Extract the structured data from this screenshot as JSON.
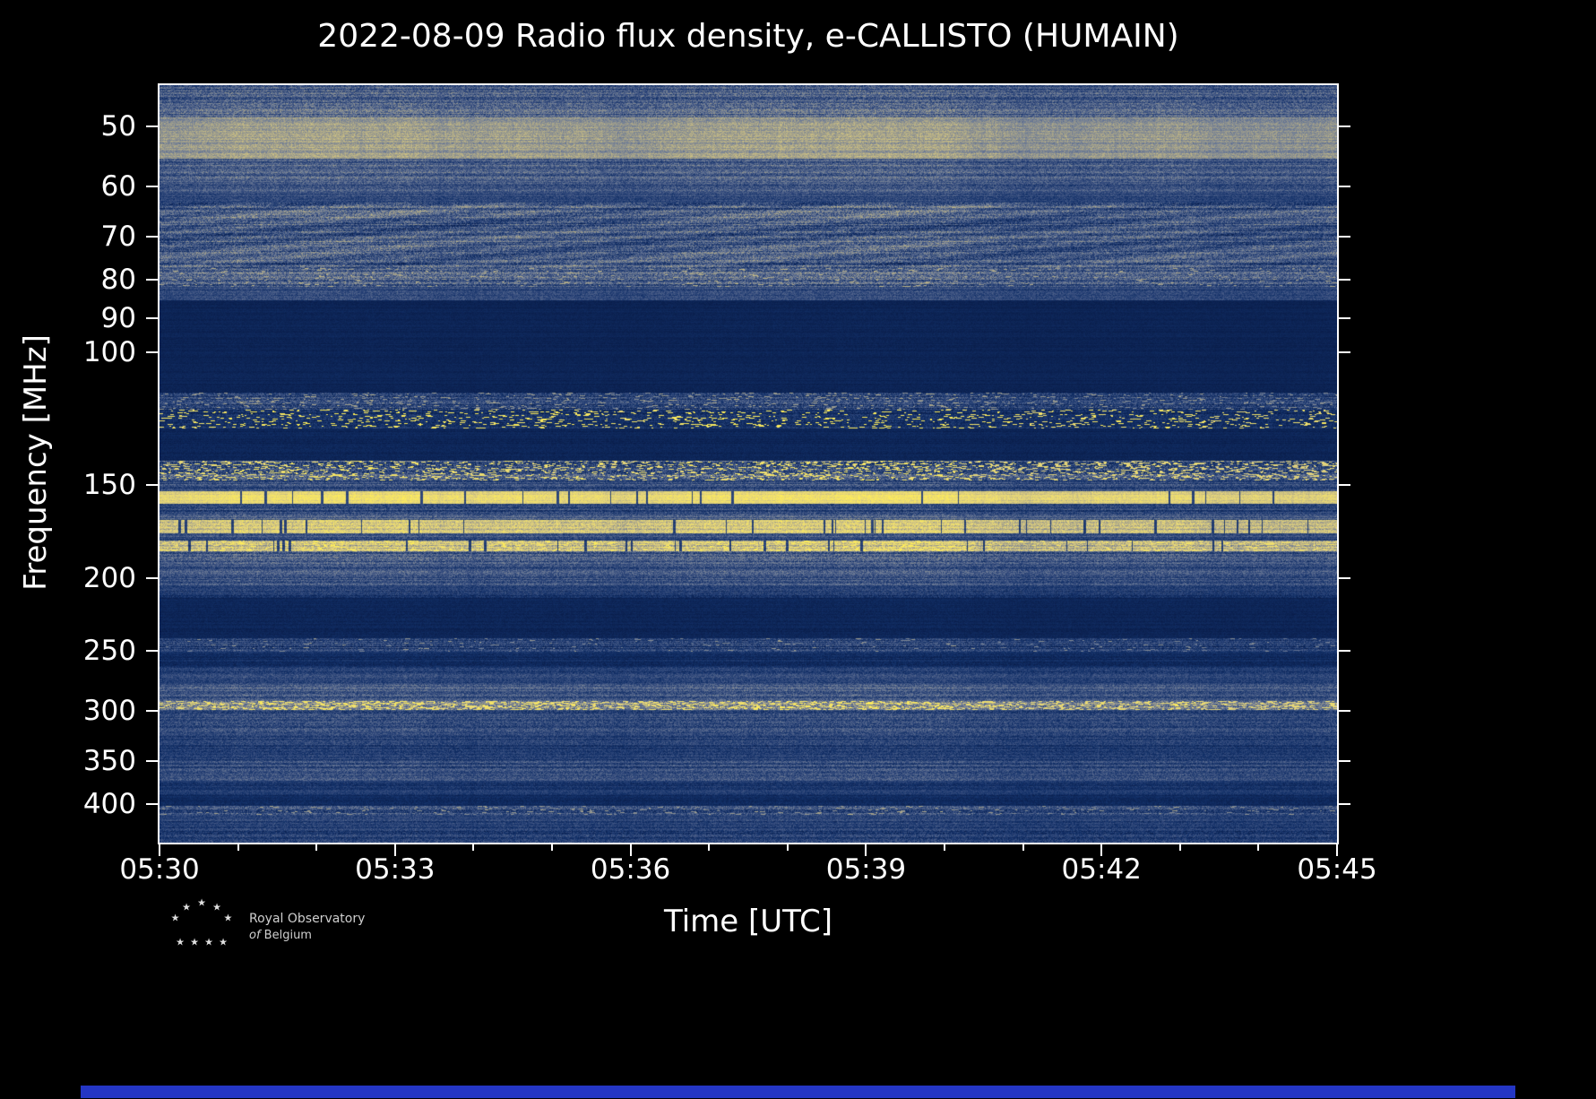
{
  "figure": {
    "title": "2022-08-09 Radio flux density, e-CALLISTO (HUMAIN)",
    "xlabel": "Time [UTC]",
    "ylabel": "Frequency [MHz]"
  },
  "logo": {
    "line1": "Royal Observatory",
    "line2_italic": "of",
    "line2": "Belgium"
  },
  "chart_data": {
    "type": "heatmap",
    "title": "2022-08-09 Radio flux density, e-CALLISTO (HUMAIN)",
    "xlabel": "Time [UTC]",
    "ylabel": "Frequency [MHz]",
    "date": "2022-08-09",
    "instrument": "e-CALLISTO",
    "station": "HUMAIN",
    "x_ticks_major": [
      "05:30",
      "05:33",
      "05:36",
      "05:39",
      "05:42",
      "05:45"
    ],
    "x_total_minutes": 15,
    "x_major_every_minutes": 3,
    "x_minor_every_minutes": 1,
    "y_scale": "log",
    "y_ticks": [
      50,
      60,
      70,
      80,
      90,
      100,
      150,
      200,
      250,
      300,
      350,
      400
    ],
    "freq_min_mhz": 44,
    "freq_max_mhz": 450,
    "legend": "none",
    "grid": false,
    "description": "Dynamic radio spectrum (spectrogram). Horizontal noise and RFI bands of varying intensity; bright yellow interference lines near 120, 145, 155, 170, 180 and 298 MHz; quiet dark bands at 85-113 MHz and 212-240 MHz.",
    "colormap_stops": [
      {
        "v": 0.0,
        "c": "#081a45"
      },
      {
        "v": 0.15,
        "c": "#123068"
      },
      {
        "v": 0.3,
        "c": "#3a5080"
      },
      {
        "v": 0.45,
        "c": "#6e7c96"
      },
      {
        "v": 0.58,
        "c": "#9d9c8c"
      },
      {
        "v": 0.7,
        "c": "#c7bc84"
      },
      {
        "v": 0.82,
        "c": "#e6d67a"
      },
      {
        "v": 1.0,
        "c": "#ffee58"
      }
    ],
    "bands": [
      {
        "f_lo": 44,
        "f_hi": 46.5,
        "base": 0.32,
        "var": 0.18
      },
      {
        "f_lo": 46.5,
        "f_hi": 48.5,
        "base": 0.38,
        "var": 0.18
      },
      {
        "f_lo": 48.5,
        "f_hi": 55,
        "base": 0.56,
        "var": 0.12
      },
      {
        "f_lo": 55,
        "f_hi": 59,
        "base": 0.34,
        "var": 0.16
      },
      {
        "f_lo": 59,
        "f_hi": 61,
        "base": 0.3,
        "var": 0.15
      },
      {
        "f_lo": 61,
        "f_hi": 63,
        "base": 0.24,
        "var": 0.12
      },
      {
        "f_lo": 63,
        "f_hi": 77,
        "base": 0.33,
        "var": 0.2,
        "wavy": true
      },
      {
        "f_lo": 77,
        "f_hi": 81.5,
        "base": 0.33,
        "var": 0.2,
        "sp_p": 0.03,
        "sp_i": 0.6
      },
      {
        "f_lo": 81.5,
        "f_hi": 85,
        "base": 0.24,
        "var": 0.12
      },
      {
        "f_lo": 85,
        "f_hi": 113,
        "base": 0.07,
        "var": 0.04
      },
      {
        "f_lo": 113,
        "f_hi": 119,
        "base": 0.22,
        "var": 0.18,
        "sp_p": 0.06,
        "sp_i": 0.55
      },
      {
        "f_lo": 119,
        "f_hi": 126,
        "base": 0.15,
        "var": 0.12,
        "sp_p": 0.09,
        "sp_i": 0.95
      },
      {
        "f_lo": 126,
        "f_hi": 139,
        "base": 0.08,
        "var": 0.05
      },
      {
        "f_lo": 139,
        "f_hi": 148,
        "base": 0.3,
        "var": 0.22,
        "sp_p": 0.16,
        "sp_i": 0.85
      },
      {
        "f_lo": 148,
        "f_hi": 153,
        "base": 0.27,
        "var": 0.15
      },
      {
        "f_lo": 153,
        "f_hi": 159,
        "base": 0.82,
        "var": 0.12,
        "drop_p": 0.015
      },
      {
        "f_lo": 159,
        "f_hi": 163,
        "base": 0.25,
        "var": 0.15
      },
      {
        "f_lo": 163,
        "f_hi": 167,
        "base": 0.33,
        "var": 0.15
      },
      {
        "f_lo": 167,
        "f_hi": 174,
        "base": 0.72,
        "var": 0.18,
        "drop_p": 0.03
      },
      {
        "f_lo": 174,
        "f_hi": 178,
        "base": 0.28,
        "var": 0.14
      },
      {
        "f_lo": 178,
        "f_hi": 184,
        "base": 0.7,
        "var": 0.2,
        "sp_p": 0.08,
        "sp_i": 0.92,
        "drop_p": 0.02
      },
      {
        "f_lo": 184,
        "f_hi": 190,
        "base": 0.34,
        "var": 0.18
      },
      {
        "f_lo": 190,
        "f_hi": 204,
        "base": 0.3,
        "var": 0.15
      },
      {
        "f_lo": 204,
        "f_hi": 212,
        "base": 0.2,
        "var": 0.12
      },
      {
        "f_lo": 212,
        "f_hi": 240,
        "base": 0.08,
        "var": 0.05
      },
      {
        "f_lo": 240,
        "f_hi": 250,
        "base": 0.22,
        "var": 0.16,
        "sp_p": 0.02,
        "sp_i": 0.5
      },
      {
        "f_lo": 250,
        "f_hi": 262,
        "base": 0.12,
        "var": 0.08
      },
      {
        "f_lo": 262,
        "f_hi": 276,
        "base": 0.22,
        "var": 0.12
      },
      {
        "f_lo": 276,
        "f_hi": 291,
        "base": 0.3,
        "var": 0.15
      },
      {
        "f_lo": 291,
        "f_hi": 299,
        "base": 0.5,
        "var": 0.22,
        "sp_p": 0.22,
        "sp_i": 0.88
      },
      {
        "f_lo": 299,
        "f_hi": 320,
        "base": 0.28,
        "var": 0.15
      },
      {
        "f_lo": 320,
        "f_hi": 333,
        "base": 0.25,
        "var": 0.13
      },
      {
        "f_lo": 333,
        "f_hi": 349,
        "base": 0.2,
        "var": 0.12
      },
      {
        "f_lo": 349,
        "f_hi": 372,
        "base": 0.26,
        "var": 0.14
      },
      {
        "f_lo": 372,
        "f_hi": 388,
        "base": 0.17,
        "var": 0.1
      },
      {
        "f_lo": 388,
        "f_hi": 401,
        "base": 0.11,
        "var": 0.07
      },
      {
        "f_lo": 401,
        "f_hi": 413,
        "base": 0.28,
        "var": 0.18,
        "sp_p": 0.05,
        "sp_i": 0.55
      },
      {
        "f_lo": 413,
        "f_hi": 432,
        "base": 0.22,
        "var": 0.12
      },
      {
        "f_lo": 432,
        "f_hi": 450,
        "base": 0.2,
        "var": 0.14
      }
    ]
  }
}
